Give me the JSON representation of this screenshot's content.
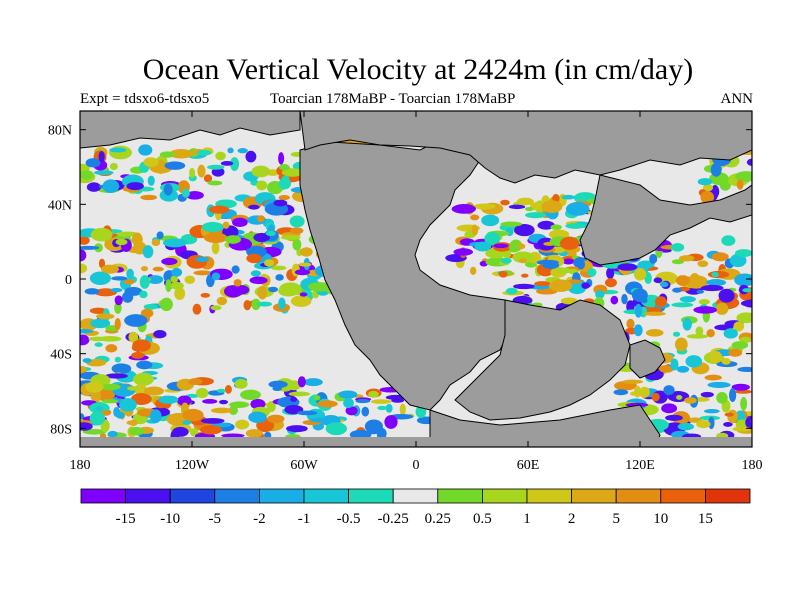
{
  "title": "Ocean Vertical Velocity at 2424m (in cm/day)",
  "left_subtitle": "Expt = tdsxo6-tdsxo5",
  "center_subtitle": "Toarcian 178MaBP - Toarcian 178MaBP",
  "right_subtitle": "ANN",
  "map": {
    "projection": "equirectangular",
    "lon_range": [
      -180,
      180
    ],
    "lat_range": [
      -90,
      90
    ],
    "lat_ticks": [
      {
        "value": 80,
        "label": "80N"
      },
      {
        "value": 40,
        "label": "40N"
      },
      {
        "value": 0,
        "label": "0"
      },
      {
        "value": -40,
        "label": "40S"
      },
      {
        "value": -80,
        "label": "80S"
      }
    ],
    "lon_ticks": [
      {
        "value": -180,
        "label": "180"
      },
      {
        "value": -120,
        "label": "120W"
      },
      {
        "value": -60,
        "label": "60W"
      },
      {
        "value": 0,
        "label": "0"
      },
      {
        "value": 60,
        "label": "60E"
      },
      {
        "value": 120,
        "label": "120E"
      },
      {
        "value": 180,
        "label": "180"
      }
    ],
    "land_color": "#9c9c9c",
    "missing_color": "#e8e8e8"
  },
  "colorbar": {
    "colors": [
      "#7f00ff",
      "#4a10f0",
      "#1f44e0",
      "#1d7fe6",
      "#19aee6",
      "#18c6d6",
      "#1cd9b8",
      "#e8e8e8",
      "#72d92a",
      "#a8d61f",
      "#cfc81a",
      "#dca816",
      "#e38d12",
      "#e8620e",
      "#e0350c"
    ],
    "labels": [
      "-15",
      "-10",
      "-5",
      "-2",
      "-1",
      "-0.5",
      "-0.25",
      "0.25",
      "0.5",
      "1",
      "2",
      "5",
      "10",
      "15"
    ]
  }
}
